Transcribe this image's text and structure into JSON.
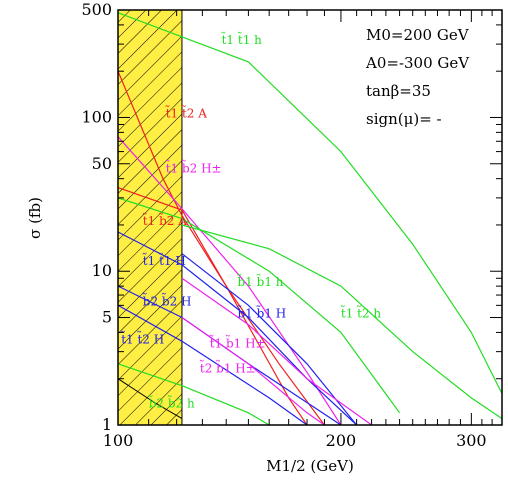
{
  "chart_data": {
    "type": "line",
    "xlabel": "M1/2 (GeV)",
    "ylabel": "σ (fb)",
    "x_scale": "log",
    "y_scale": "log",
    "xlim": [
      100,
      330
    ],
    "ylim": [
      1,
      500
    ],
    "x_ticks": [
      {
        "value": 100,
        "label": "100"
      },
      {
        "value": 200,
        "label": "200"
      },
      {
        "value": 300,
        "label": "300"
      }
    ],
    "y_ticks": [
      {
        "value": 1,
        "label": "1"
      },
      {
        "value": 5,
        "label": "5"
      },
      {
        "value": 10,
        "label": "10"
      },
      {
        "value": 50,
        "label": "50"
      },
      {
        "value": 100,
        "label": "100"
      },
      {
        "value": 500,
        "label": "500"
      }
    ],
    "excluded_region": {
      "x_from": 100,
      "x_to": 122
    },
    "parameters": [
      "M0=200 GeV",
      "A0=-300 GeV",
      "tanβ=35",
      "sign(μ)= -"
    ],
    "colors": {
      "green": "#22dd22",
      "red": "#ee2222",
      "magenta": "#ee22ee",
      "blue": "#2222ee",
      "black": "#000000",
      "hatch_fill": "#ffee44"
    },
    "series": [
      {
        "name": "t̃1 t̃1 h",
        "color": "#22dd22",
        "label_at": [
          138,
          300
        ],
        "points": [
          [
            100,
            480
          ],
          [
            150,
            230
          ],
          [
            200,
            60
          ],
          [
            250,
            15
          ],
          [
            300,
            4
          ],
          [
            330,
            1.6
          ]
        ]
      },
      {
        "name": "t̃1 t̃2 A",
        "color": "#ee2222",
        "label_at": [
          116,
          100
        ],
        "points": [
          [
            100,
            200
          ],
          [
            115,
            40
          ],
          [
            122,
            23
          ],
          [
            140,
            8
          ],
          [
            170,
            1.5
          ],
          [
            180,
            1
          ]
        ]
      },
      {
        "name": "t̃1 b̃2 H±",
        "color": "#ee22ee",
        "label_at": [
          116,
          44
        ],
        "points": [
          [
            100,
            75
          ],
          [
            120,
            28
          ],
          [
            150,
            8
          ],
          [
            180,
            2.2
          ],
          [
            200,
            1
          ]
        ]
      },
      {
        "name": "t̃1 b̃2 A",
        "color": "#ee2222",
        "label_at": [
          108,
          20
        ],
        "points": [
          [
            100,
            35
          ],
          [
            122,
            25
          ],
          [
            140,
            8
          ],
          [
            165,
            2.5
          ],
          [
            190,
            1
          ]
        ]
      },
      {
        "name": "t̃1 t̃1 H",
        "color": "#2222ee",
        "label_at": [
          108,
          11
        ],
        "points": [
          [
            100,
            18
          ],
          [
            122,
            11
          ],
          [
            150,
            5
          ],
          [
            180,
            2
          ],
          [
            210,
            1
          ]
        ]
      },
      {
        "name": "b̃1 b̃1 h",
        "color": "#22dd22",
        "label_at": [
          145,
          8
        ],
        "points": [
          [
            100,
            30
          ],
          [
            122,
            22
          ],
          [
            160,
            10
          ],
          [
            200,
            4
          ],
          [
            240,
            1.2
          ]
        ]
      },
      {
        "name": "b̃1 b̃1 H",
        "color": "#2222ee",
        "label_at": [
          145,
          5
        ],
        "points": [
          [
            122,
            13
          ],
          [
            150,
            6
          ],
          [
            180,
            2.5
          ],
          [
            210,
            1
          ]
        ]
      },
      {
        "name": "b̃2 b̃2 H",
        "color": "#2222ee",
        "label_at": [
          108,
          6
        ],
        "points": [
          [
            100,
            8
          ],
          [
            122,
            5
          ],
          [
            150,
            2.5
          ],
          [
            200,
            1
          ]
        ]
      },
      {
        "name": "t̃1 t̃2 h",
        "color": "#22dd22",
        "label_at": [
          200,
          5
        ],
        "points": [
          [
            122,
            20
          ],
          [
            160,
            14
          ],
          [
            200,
            8
          ],
          [
            250,
            3
          ],
          [
            300,
            1.5
          ],
          [
            330,
            1.1
          ]
        ]
      },
      {
        "name": "t̃1 b̃1 H±",
        "color": "#ee22ee",
        "label_at": [
          133,
          3.2
        ],
        "points": [
          [
            122,
            9
          ],
          [
            150,
            4.5
          ],
          [
            180,
            2
          ],
          [
            220,
            1
          ]
        ]
      },
      {
        "name": "t̃1 t̃2 H",
        "color": "#2222ee",
        "label_at": [
          101,
          3.4
        ],
        "points": [
          [
            100,
            6
          ],
          [
            122,
            3.5
          ],
          [
            160,
            1.5
          ],
          [
            180,
            1
          ]
        ]
      },
      {
        "name": "t̃2 b̃1 H±",
        "color": "#ee22ee",
        "label_at": [
          129,
          2.2
        ],
        "points": [
          [
            122,
            5
          ],
          [
            150,
            2.5
          ],
          [
            180,
            1.2
          ],
          [
            190,
            1
          ]
        ]
      },
      {
        "name": "b̃2 b̃2 h",
        "color": "#22dd22",
        "label_at": [
          110,
          1.3
        ],
        "points": [
          [
            100,
            2.5
          ],
          [
            122,
            1.8
          ],
          [
            150,
            1.2
          ],
          [
            160,
            1
          ]
        ]
      }
    ],
    "extra_curves": [
      {
        "color": "#000000",
        "points": [
          [
            100,
            2
          ],
          [
            112,
            1.4
          ],
          [
            122,
            1.1
          ]
        ]
      }
    ]
  }
}
